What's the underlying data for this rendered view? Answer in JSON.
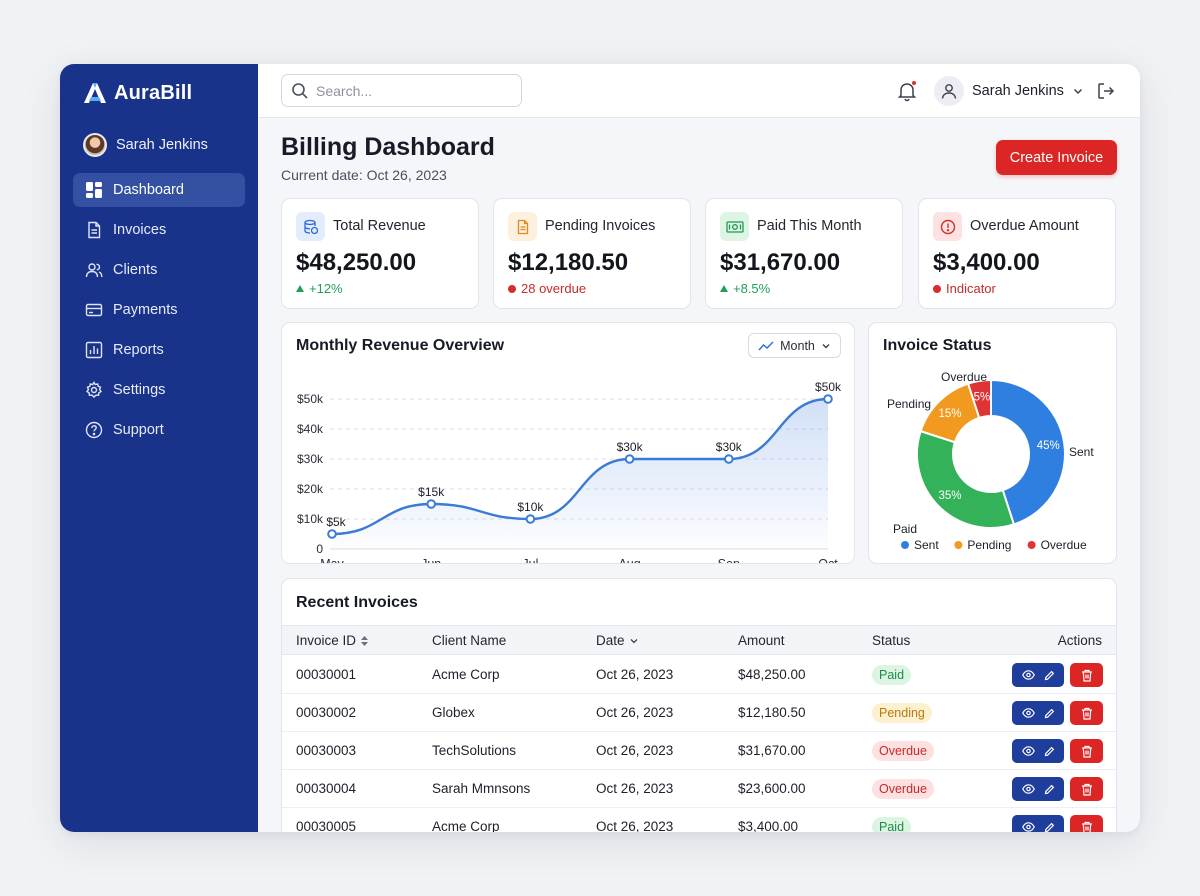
{
  "app": {
    "name": "AuraBill"
  },
  "sidebar": {
    "user_name": "Sarah Jenkins",
    "items": [
      {
        "label": "Dashboard",
        "icon": "dashboard-icon",
        "active": true
      },
      {
        "label": "Invoices",
        "icon": "invoice-icon"
      },
      {
        "label": "Clients",
        "icon": "clients-icon"
      },
      {
        "label": "Payments",
        "icon": "card-icon"
      },
      {
        "label": "Reports",
        "icon": "reports-icon"
      },
      {
        "label": "Settings",
        "icon": "gear-icon"
      },
      {
        "label": "Support",
        "icon": "help-icon"
      }
    ]
  },
  "topbar": {
    "search_placeholder": "Search...",
    "user_name": "Sarah Jenkins",
    "notification_unread": true
  },
  "header": {
    "title": "Billing Dashboard",
    "date": "Current date: Oct 26, 2023",
    "create_label": "Create Invoice"
  },
  "stats": [
    {
      "label": "Total Revenue",
      "value": "$48,250.00",
      "change": "+12%",
      "trend": "up",
      "icon": "database-icon",
      "accent": "#2f6bd8",
      "tint": "#e3ecfb"
    },
    {
      "label": "Pending Invoices",
      "value": "$12,180.50",
      "change": "28 overdue",
      "trend": "alert",
      "icon": "document-icon",
      "accent": "#e08a1e",
      "tint": "#fdf0dc"
    },
    {
      "label": "Paid This Month",
      "value": "$31,670.00",
      "change": "+8.5%",
      "trend": "up",
      "icon": "banknote-icon",
      "accent": "#1f9a52",
      "tint": "#def5e6"
    },
    {
      "label": "Overdue Amount",
      "value": "$3,400.00",
      "change": "Indicator",
      "trend": "alert",
      "icon": "alert-icon",
      "accent": "#d62d2d",
      "tint": "#fde2e2"
    }
  ],
  "revenue_panel": {
    "title": "Monthly Revenue Overview",
    "range_label": "Month"
  },
  "status_panel": {
    "title": "Invoice Status"
  },
  "chart_data": [
    {
      "type": "area",
      "title": "Monthly Revenue Overview",
      "categories": [
        "May",
        "Jun",
        "Jul",
        "Aug",
        "Sep",
        "Oct"
      ],
      "values": [
        5,
        15,
        10,
        30,
        30,
        50
      ],
      "point_labels": [
        "$5k",
        "$15k",
        "$10k",
        "$30k",
        "$30k",
        "$50k"
      ],
      "y_ticks": [
        "0",
        "$10k",
        "$20k",
        "$30k",
        "$40k",
        "$50k"
      ],
      "ylim": [
        0,
        50
      ],
      "grid": true,
      "color": "#3a7bd5"
    },
    {
      "type": "pie",
      "title": "Invoice Status",
      "donut": true,
      "slices": [
        {
          "name": "Sent",
          "value": 45,
          "label": "45%",
          "color": "#2f7fe0"
        },
        {
          "name": "Paid",
          "value": 35,
          "label": "35%",
          "color": "#34b25a"
        },
        {
          "name": "Pending",
          "value": 15,
          "label": "15%",
          "color": "#f29a1f"
        },
        {
          "name": "Overdue",
          "value": 5,
          "label": "5%",
          "color": "#e03333"
        }
      ],
      "legend": [
        {
          "name": "Sent",
          "color": "#2f7fe0"
        },
        {
          "name": "Pending",
          "color": "#f29a1f"
        },
        {
          "name": "Overdue",
          "color": "#e03333"
        }
      ],
      "legend_position": "bottom"
    }
  ],
  "invoices": {
    "title": "Recent Invoices",
    "columns": [
      "Invoice ID",
      "Client Name",
      "Date",
      "Amount",
      "Status",
      "Actions"
    ],
    "rows": [
      {
        "id": "00030001",
        "client": "Acme Corp",
        "date": "Oct 26, 2023",
        "amount": "$48,250.00",
        "status": "Paid"
      },
      {
        "id": "00030002",
        "client": "Globex",
        "date": "Oct 26, 2023",
        "amount": "$12,180.50",
        "status": "Pending"
      },
      {
        "id": "00030003",
        "client": "TechSolutions",
        "date": "Oct 26, 2023",
        "amount": "$31,670.00",
        "status": "Overdue"
      },
      {
        "id": "00030004",
        "client": "Sarah Mmnsons",
        "date": "Oct 26, 2023",
        "amount": "$23,600.00",
        "status": "Overdue"
      },
      {
        "id": "00030005",
        "client": "Acme Corp",
        "date": "Oct 26, 2023",
        "amount": "$3,400.00",
        "status": "Paid"
      }
    ]
  }
}
